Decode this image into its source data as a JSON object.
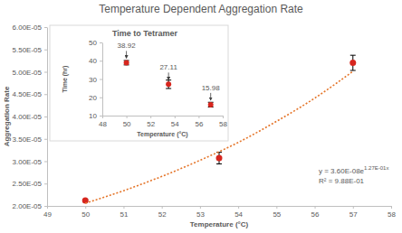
{
  "chart_data": [
    {
      "type": "scatter",
      "title": "Temperature Dependent Aggregation Rate",
      "x_label": "Temperature (°C)",
      "y_label": "Aggregation Rate",
      "xlim": [
        49,
        58
      ],
      "xticks": [
        49,
        50,
        51,
        52,
        53,
        54,
        55,
        56,
        57,
        58
      ],
      "ylim": [
        2e-05,
        6e-05
      ],
      "yticks": [
        {
          "value": 2e-05,
          "label": "2.00E-05"
        },
        {
          "value": 2.5e-05,
          "label": "2.50E-05"
        },
        {
          "value": 3e-05,
          "label": "3.00E-05"
        },
        {
          "value": 3.5e-05,
          "label": "3.50E-05"
        },
        {
          "value": 4e-05,
          "label": "4.00E-05"
        },
        {
          "value": 4.5e-05,
          "label": "4.50E-05"
        },
        {
          "value": 5e-05,
          "label": "5.00E-05"
        },
        {
          "value": 5.5e-05,
          "label": "5.50E-05"
        },
        {
          "value": 6e-05,
          "label": "6.00E-05"
        }
      ],
      "grid": false,
      "series": [
        {
          "type": "scatter",
          "color": "#d7261e",
          "marker": "circle",
          "x": [
            50,
            53.5,
            57
          ],
          "values": [
            2.12e-05,
            3.07e-05,
            5.2e-05
          ],
          "errors": [
            2e-07,
            1.3e-06,
            1.7e-06
          ]
        },
        {
          "type": "line",
          "color": "#e5762b",
          "line_style": "dotted",
          "x": [
            50,
            51,
            52,
            53,
            54,
            55,
            56,
            57
          ],
          "values": [
            2.06e-05,
            2.34e-05,
            2.66e-05,
            3.02e-05,
            3.42e-05,
            3.89e-05,
            4.41e-05,
            5.01e-05
          ]
        }
      ],
      "annotations": [
        "y = 3.60E-08e",
        "1.27E-01x",
        "R² = 9.88E-01"
      ]
    },
    {
      "type": "scatter",
      "title": "Time to Tetramer",
      "x_label": "Temperature (°C)",
      "y_label": "Time (hr)",
      "xlim": [
        48,
        58
      ],
      "xticks": [
        48,
        50,
        52,
        54,
        56,
        58
      ],
      "ylim": [
        10,
        50
      ],
      "yticks": [
        10,
        20,
        30,
        40,
        50
      ],
      "grid": false,
      "data_labels": true,
      "series": [
        {
          "type": "scatter",
          "color": "#d7261e",
          "marker": "circle",
          "x": [
            50,
            53.5,
            57
          ],
          "values": [
            38.92,
            27.11,
            15.98
          ],
          "errors": [
            1.2,
            2.3,
            1.3
          ]
        }
      ]
    }
  ]
}
